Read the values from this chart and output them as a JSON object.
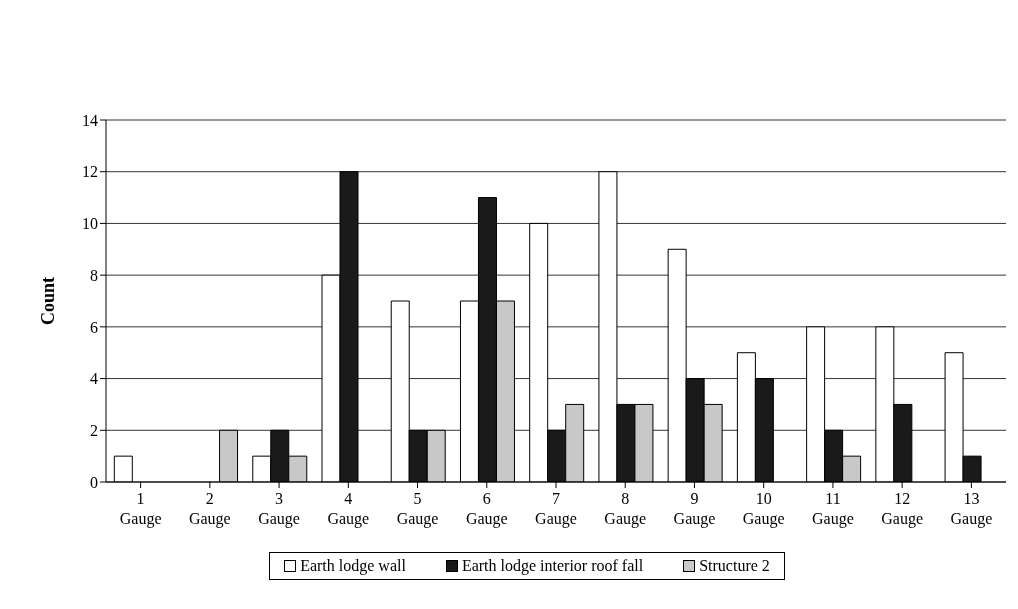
{
  "chart_data": {
    "type": "bar",
    "ylabel": "Count",
    "categories": [
      "1 Gauge",
      "2 Gauge",
      "3 Gauge",
      "4 Gauge",
      "5 Gauge",
      "6 Gauge",
      "7 Gauge",
      "8 Gauge",
      "9 Gauge",
      "10 Gauge",
      "11 Gauge",
      "12 Gauge",
      "13 Gauge"
    ],
    "series": [
      {
        "name": "Earth lodge wall",
        "color": "#ffffff",
        "values": [
          1,
          0,
          1,
          8,
          7,
          7,
          10,
          12,
          9,
          5,
          6,
          6,
          5
        ]
      },
      {
        "name": "Earth lodge interior roof fall",
        "color": "#1a1a1a",
        "values": [
          0,
          0,
          2,
          12,
          2,
          11,
          2,
          3,
          4,
          4,
          2,
          3,
          1
        ]
      },
      {
        "name": "Structure 2",
        "color": "#c8c8c8",
        "values": [
          0,
          2,
          1,
          0,
          2,
          7,
          3,
          3,
          3,
          0,
          1,
          0,
          0
        ]
      }
    ],
    "ylim": [
      0,
      14
    ],
    "yticks": [
      0,
      2,
      4,
      6,
      8,
      10,
      12,
      14
    ],
    "grid": "y",
    "legend": "bottom"
  }
}
